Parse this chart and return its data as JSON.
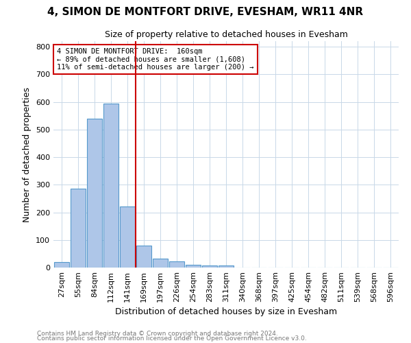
{
  "title": "4, SIMON DE MONTFORT DRIVE, EVESHAM, WR11 4NR",
  "subtitle": "Size of property relative to detached houses in Evesham",
  "xlabel": "Distribution of detached houses by size in Evesham",
  "ylabel": "Number of detached properties",
  "footnote1": "Contains HM Land Registry data © Crown copyright and database right 2024.",
  "footnote2": "Contains public sector information licensed under the Open Government Licence v3.0.",
  "annotation_line1": "4 SIMON DE MONTFORT DRIVE:  160sqm",
  "annotation_line2": "← 89% of detached houses are smaller (1,608)",
  "annotation_line3": "11% of semi-detached houses are larger (200) →",
  "bar_labels": [
    "27sqm",
    "55sqm",
    "84sqm",
    "112sqm",
    "141sqm",
    "169sqm",
    "197sqm",
    "226sqm",
    "254sqm",
    "283sqm",
    "311sqm",
    "340sqm",
    "368sqm",
    "397sqm",
    "425sqm",
    "454sqm",
    "482sqm",
    "511sqm",
    "539sqm",
    "568sqm",
    "596sqm"
  ],
  "bar_values": [
    20,
    287,
    540,
    595,
    220,
    80,
    33,
    22,
    10,
    7,
    7,
    0,
    0,
    0,
    0,
    0,
    0,
    0,
    0,
    0,
    0
  ],
  "vline_bar_index": 5,
  "vline_color": "#cc0000",
  "bar_color": "#aec6e8",
  "bar_edge_color": "#5599cc",
  "ylim": [
    0,
    820
  ],
  "yticks": [
    0,
    100,
    200,
    300,
    400,
    500,
    600,
    700,
    800
  ],
  "background_color": "#ffffff",
  "grid_color": "#c8d8e8",
  "annotation_box_edge": "#cc0000",
  "title_fontsize": 11,
  "subtitle_fontsize": 9,
  "ylabel_fontsize": 9,
  "xlabel_fontsize": 9,
  "tick_fontsize": 8,
  "annot_fontsize": 7.5,
  "footnote_fontsize": 6.5
}
